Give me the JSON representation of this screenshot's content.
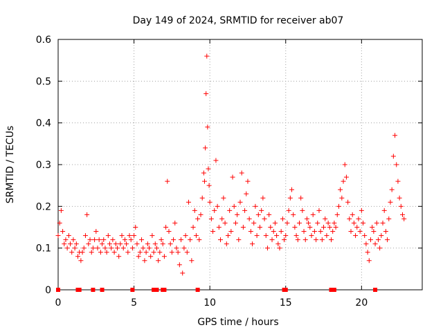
{
  "chart_data": {
    "type": "scatter",
    "title": "Day 149 of 2024, SRMTID for receiver ab07",
    "xlabel": "GPS time / hours",
    "ylabel": "SRMTID / TECUs",
    "xlim": [
      0,
      24
    ],
    "ylim": [
      0,
      0.6
    ],
    "xticks": [
      0,
      5,
      10,
      15,
      20
    ],
    "yticks": [
      0,
      0.1,
      0.2,
      0.3,
      0.4,
      0.5,
      0.6
    ],
    "xtick_labels": [
      "0",
      "5",
      "10",
      "15",
      "20"
    ],
    "ytick_labels": [
      "0",
      "0.1",
      "0.2",
      "0.3",
      "0.4",
      "0.5",
      "0.6"
    ],
    "grid": true,
    "marker": "+",
    "color": "#ff0000",
    "series": [
      {
        "name": "SRMTID",
        "x": [
          0.0,
          0.1,
          0.2,
          0.3,
          0.4,
          0.5,
          0.6,
          0.7,
          0.8,
          0.9,
          1.0,
          1.1,
          1.2,
          1.3,
          1.4,
          1.5,
          1.6,
          1.7,
          1.8,
          1.9,
          2.0,
          2.1,
          2.2,
          2.3,
          2.4,
          2.5,
          2.6,
          2.7,
          2.8,
          2.9,
          3.0,
          3.1,
          3.2,
          3.3,
          3.4,
          3.5,
          3.6,
          3.7,
          3.8,
          3.9,
          4.0,
          4.1,
          4.2,
          4.3,
          4.4,
          4.5,
          4.6,
          4.7,
          4.8,
          4.9,
          5.0,
          5.1,
          5.2,
          5.3,
          5.4,
          5.5,
          5.6,
          5.7,
          5.8,
          5.9,
          6.0,
          6.1,
          6.2,
          6.3,
          6.4,
          6.5,
          6.6,
          6.7,
          6.8,
          6.9,
          7.0,
          7.1,
          7.2,
          7.3,
          7.4,
          7.5,
          7.6,
          7.7,
          7.8,
          7.9,
          8.0,
          8.1,
          8.2,
          8.3,
          8.4,
          8.5,
          8.6,
          8.7,
          8.8,
          8.9,
          9.0,
          9.1,
          9.2,
          9.3,
          9.4,
          9.5,
          9.6,
          9.65,
          9.7,
          9.75,
          9.8,
          9.85,
          9.9,
          9.95,
          10.0,
          10.1,
          10.2,
          10.3,
          10.4,
          10.5,
          10.6,
          10.7,
          10.8,
          10.9,
          11.0,
          11.1,
          11.2,
          11.3,
          11.4,
          11.5,
          11.6,
          11.7,
          11.8,
          11.9,
          12.0,
          12.1,
          12.2,
          12.3,
          12.4,
          12.5,
          12.6,
          12.7,
          12.8,
          12.9,
          13.0,
          13.1,
          13.2,
          13.3,
          13.4,
          13.5,
          13.6,
          13.7,
          13.8,
          13.9,
          14.0,
          14.1,
          14.2,
          14.3,
          14.4,
          14.5,
          14.6,
          14.7,
          14.8,
          14.9,
          15.0,
          15.1,
          15.2,
          15.3,
          15.4,
          15.5,
          15.6,
          15.7,
          15.8,
          15.9,
          16.0,
          16.1,
          16.2,
          16.3,
          16.4,
          16.5,
          16.6,
          16.7,
          16.8,
          16.9,
          17.0,
          17.1,
          17.2,
          17.3,
          17.4,
          17.5,
          17.6,
          17.7,
          17.8,
          17.9,
          18.0,
          18.1,
          18.2,
          18.3,
          18.4,
          18.5,
          18.6,
          18.7,
          18.8,
          18.9,
          19.0,
          19.1,
          19.2,
          19.3,
          19.4,
          19.5,
          19.6,
          19.7,
          19.8,
          19.9,
          20.0,
          20.1,
          20.2,
          20.3,
          20.4,
          20.5,
          20.6,
          20.7,
          20.8,
          20.9,
          21.0,
          21.1,
          21.2,
          21.3,
          21.4,
          21.5,
          21.6,
          21.7,
          21.8,
          21.9,
          22.0,
          22.1,
          22.2,
          22.3,
          22.4,
          22.5,
          22.6,
          22.7,
          22.8
        ],
        "y": [
          0.13,
          0.16,
          0.19,
          0.14,
          0.11,
          0.12,
          0.1,
          0.13,
          0.11,
          0.09,
          0.12,
          0.1,
          0.11,
          0.08,
          0.09,
          0.07,
          0.09,
          0.1,
          0.13,
          0.18,
          0.11,
          0.12,
          0.09,
          0.1,
          0.12,
          0.14,
          0.1,
          0.12,
          0.09,
          0.11,
          0.12,
          0.1,
          0.09,
          0.13,
          0.11,
          0.1,
          0.12,
          0.09,
          0.11,
          0.1,
          0.08,
          0.11,
          0.13,
          0.1,
          0.12,
          0.11,
          0.09,
          0.13,
          0.12,
          0.1,
          0.13,
          0.15,
          0.11,
          0.08,
          0.09,
          0.12,
          0.1,
          0.07,
          0.09,
          0.11,
          0.1,
          0.08,
          0.13,
          0.09,
          0.11,
          0.1,
          0.07,
          0.09,
          0.12,
          0.11,
          0.08,
          0.15,
          0.26,
          0.14,
          0.11,
          0.09,
          0.12,
          0.16,
          0.1,
          0.09,
          0.06,
          0.12,
          0.04,
          0.1,
          0.13,
          0.09,
          0.21,
          0.12,
          0.07,
          0.15,
          0.19,
          0.13,
          0.17,
          0.12,
          0.18,
          0.22,
          0.28,
          0.26,
          0.34,
          0.47,
          0.56,
          0.39,
          0.29,
          0.25,
          0.21,
          0.17,
          0.14,
          0.19,
          0.31,
          0.2,
          0.15,
          0.12,
          0.17,
          0.22,
          0.16,
          0.11,
          0.13,
          0.19,
          0.14,
          0.27,
          0.2,
          0.16,
          0.18,
          0.12,
          0.21,
          0.28,
          0.15,
          0.19,
          0.23,
          0.26,
          0.17,
          0.14,
          0.11,
          0.16,
          0.2,
          0.13,
          0.18,
          0.15,
          0.19,
          0.22,
          0.17,
          0.13,
          0.1,
          0.18,
          0.15,
          0.12,
          0.14,
          0.16,
          0.13,
          0.11,
          0.1,
          0.14,
          0.17,
          0.12,
          0.13,
          0.16,
          0.19,
          0.22,
          0.24,
          0.18,
          0.15,
          0.13,
          0.12,
          0.16,
          0.22,
          0.19,
          0.14,
          0.12,
          0.17,
          0.16,
          0.15,
          0.13,
          0.18,
          0.14,
          0.12,
          0.16,
          0.19,
          0.14,
          0.12,
          0.15,
          0.17,
          0.13,
          0.16,
          0.15,
          0.12,
          0.14,
          0.16,
          0.15,
          0.18,
          0.2,
          0.24,
          0.22,
          0.26,
          0.3,
          0.27,
          0.21,
          0.17,
          0.14,
          0.18,
          0.16,
          0.13,
          0.15,
          0.17,
          0.14,
          0.19,
          0.16,
          0.13,
          0.11,
          0.09,
          0.07,
          0.12,
          0.15,
          0.14,
          0.11,
          0.16,
          0.12,
          0.1,
          0.13,
          0.16,
          0.19,
          0.14,
          0.12,
          0.17,
          0.21,
          0.24,
          0.32,
          0.37,
          0.3,
          0.26,
          0.22,
          0.2,
          0.18,
          0.17
        ]
      }
    ],
    "flag_points_x": [
      0.0,
      1.3,
      1.4,
      2.3,
      2.9,
      4.9,
      6.3,
      6.4,
      6.5,
      6.9,
      7.0,
      9.2,
      14.9,
      15.0,
      18.0,
      18.1,
      18.2,
      20.9
    ]
  }
}
